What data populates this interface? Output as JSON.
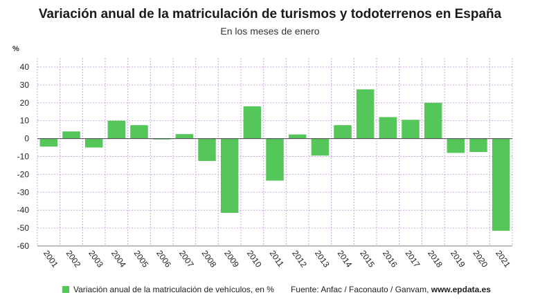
{
  "title": "Variación anual de la matriculación de turismos y todoterrenos en España",
  "subtitle": "En los meses de enero",
  "colors": {
    "bar": "#55c75a",
    "grid": "#c9a6d9",
    "axis": "#555555"
  },
  "footer": {
    "legend_label": "Variación anual de la matriculación de vehículos, en %",
    "source_prefix": "Fuente: Anfac / Faconauto / Ganvam, ",
    "source_site": "www.epdata.es"
  },
  "chart_data": {
    "type": "bar",
    "title": "",
    "ylabel": "%",
    "ylim": [
      -60,
      45
    ],
    "yticks": [
      40,
      30,
      20,
      10,
      0,
      -10,
      -20,
      -30,
      -40,
      -50,
      -60
    ],
    "grid": true,
    "categories": [
      "2001",
      "2002",
      "2003",
      "2004",
      "2005",
      "2006",
      "2007",
      "2008",
      "2009",
      "2010",
      "2011",
      "2012",
      "2013",
      "2014",
      "2015",
      "2016",
      "2017",
      "2018",
      "2019",
      "2020",
      "2021"
    ],
    "series": [
      {
        "name": "Variación anual de la matriculación de vehículos, en %",
        "values": [
          -4.5,
          4,
          -5,
          10,
          7.5,
          -0.5,
          2.5,
          -12.5,
          -41.5,
          18,
          -23.5,
          2.3,
          -9.5,
          7.5,
          27.5,
          12,
          10.5,
          20,
          -8,
          -7.5,
          -51.5
        ]
      }
    ]
  }
}
